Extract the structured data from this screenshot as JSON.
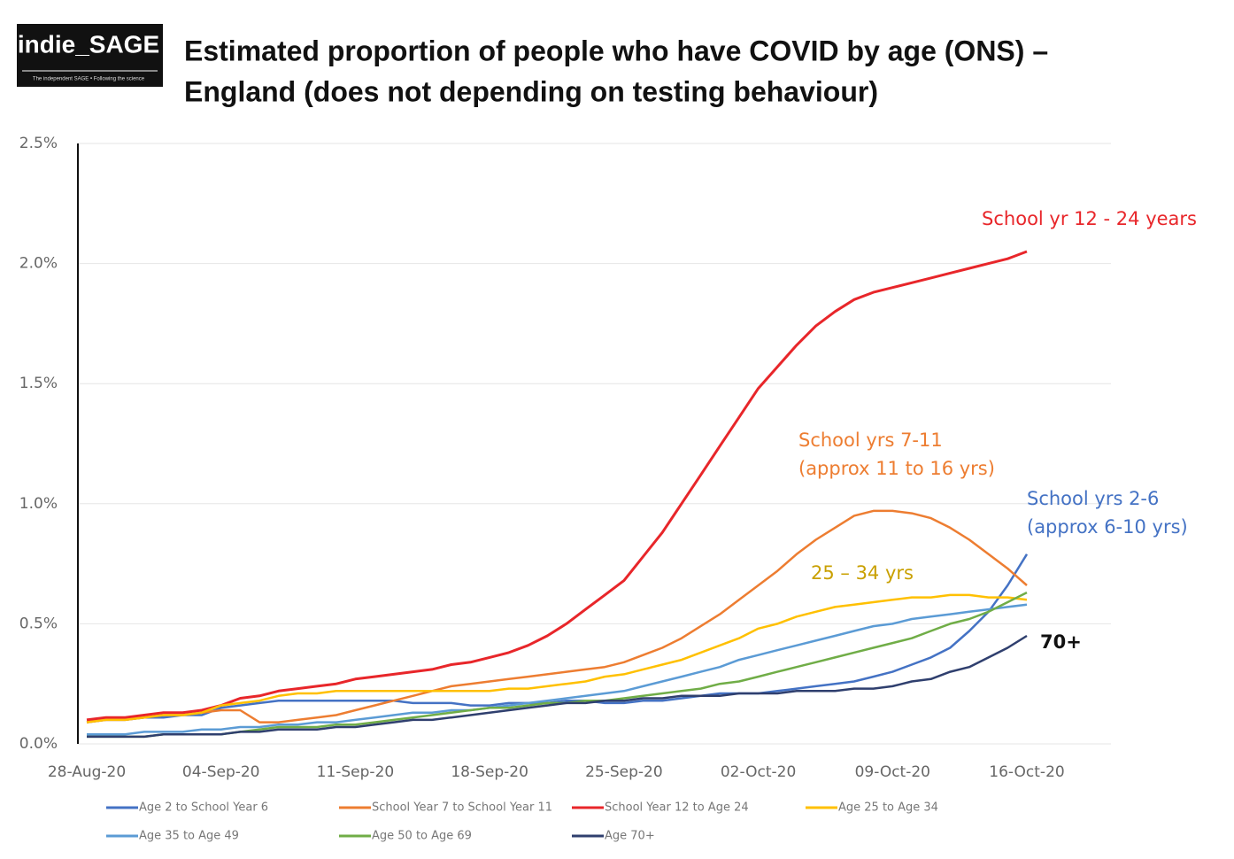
{
  "logo": {
    "name": "indie_SAGE",
    "tagline": "The independent SAGE • Following the science"
  },
  "chart_data": {
    "type": "line",
    "title": [
      "Estimated proportion of people who have COVID by age (ONS) –",
      "England (does not depending on testing behaviour)"
    ],
    "categories": [
      "28-Aug-20",
      null,
      null,
      null,
      null,
      null,
      null,
      "04-Sep-20",
      null,
      null,
      null,
      null,
      null,
      null,
      "11-Sep-20",
      null,
      null,
      null,
      null,
      null,
      null,
      "18-Sep-20",
      null,
      null,
      null,
      null,
      null,
      null,
      "25-Sep-20",
      null,
      null,
      null,
      null,
      null,
      null,
      "02-Oct-20",
      null,
      null,
      null,
      null,
      null,
      null,
      "09-Oct-20",
      null,
      null,
      null,
      null,
      null,
      null,
      "16-Oct-20"
    ],
    "ylim": [
      0,
      2.5
    ],
    "yticks": [
      {
        "value": 0,
        "label": "0.0%"
      },
      {
        "value": 0.5,
        "label": "0.5%"
      },
      {
        "value": 1,
        "label": "1.0%"
      },
      {
        "value": 1.5,
        "label": "1.5%"
      },
      {
        "value": 2,
        "label": "2.0%"
      },
      {
        "value": 2.5,
        "label": "2.5%"
      }
    ],
    "grid": true,
    "legend": "bottom",
    "series": [
      {
        "name": "Age 2 to School Year 6",
        "color": "#4472c4",
        "values": [
          0.09,
          0.1,
          0.1,
          0.11,
          0.11,
          0.12,
          0.12,
          0.15,
          0.16,
          0.17,
          0.18,
          0.18,
          0.18,
          0.18,
          0.18,
          0.18,
          0.18,
          0.17,
          0.17,
          0.17,
          0.16,
          0.16,
          0.17,
          0.17,
          0.17,
          0.18,
          0.18,
          0.17,
          0.17,
          0.18,
          0.18,
          0.19,
          0.2,
          0.21,
          0.21,
          0.21,
          0.22,
          0.23,
          0.24,
          0.25,
          0.26,
          0.28,
          0.3,
          0.33,
          0.36,
          0.4,
          0.47,
          0.55,
          0.66,
          0.79
        ]
      },
      {
        "name": "School Year 7 to School Year 11",
        "color": "#ed7d31",
        "values": [
          0.09,
          0.1,
          0.1,
          0.11,
          0.12,
          0.12,
          0.13,
          0.14,
          0.14,
          0.09,
          0.09,
          0.1,
          0.11,
          0.12,
          0.14,
          0.16,
          0.18,
          0.2,
          0.22,
          0.24,
          0.25,
          0.26,
          0.27,
          0.28,
          0.29,
          0.3,
          0.31,
          0.32,
          0.34,
          0.37,
          0.4,
          0.44,
          0.49,
          0.54,
          0.6,
          0.66,
          0.72,
          0.79,
          0.85,
          0.9,
          0.95,
          0.97,
          0.97,
          0.96,
          0.94,
          0.9,
          0.85,
          0.79,
          0.73,
          0.66
        ]
      },
      {
        "name": "School Year 12 to Age 24",
        "color": "#e8262a",
        "values": [
          0.1,
          0.11,
          0.11,
          0.12,
          0.13,
          0.13,
          0.14,
          0.16,
          0.19,
          0.2,
          0.22,
          0.23,
          0.24,
          0.25,
          0.27,
          0.28,
          0.29,
          0.3,
          0.31,
          0.33,
          0.34,
          0.36,
          0.38,
          0.41,
          0.45,
          0.5,
          0.56,
          0.62,
          0.68,
          0.78,
          0.88,
          1.0,
          1.12,
          1.24,
          1.36,
          1.48,
          1.57,
          1.66,
          1.74,
          1.8,
          1.85,
          1.88,
          1.9,
          1.92,
          1.94,
          1.96,
          1.98,
          2.0,
          2.02,
          2.05
        ]
      },
      {
        "name": "Age 25 to Age 34",
        "color": "#ffc000",
        "values": [
          0.09,
          0.1,
          0.1,
          0.11,
          0.12,
          0.12,
          0.13,
          0.16,
          0.17,
          0.18,
          0.2,
          0.21,
          0.21,
          0.22,
          0.22,
          0.22,
          0.22,
          0.22,
          0.22,
          0.22,
          0.22,
          0.22,
          0.23,
          0.23,
          0.24,
          0.25,
          0.26,
          0.28,
          0.29,
          0.31,
          0.33,
          0.35,
          0.38,
          0.41,
          0.44,
          0.48,
          0.5,
          0.53,
          0.55,
          0.57,
          0.58,
          0.59,
          0.6,
          0.61,
          0.61,
          0.62,
          0.62,
          0.61,
          0.61,
          0.6
        ]
      },
      {
        "name": "Age 35 to Age 49",
        "color": "#5b9bd5",
        "values": [
          0.04,
          0.04,
          0.04,
          0.05,
          0.05,
          0.05,
          0.06,
          0.06,
          0.07,
          0.07,
          0.08,
          0.08,
          0.09,
          0.09,
          0.1,
          0.11,
          0.12,
          0.13,
          0.13,
          0.14,
          0.14,
          0.15,
          0.16,
          0.17,
          0.18,
          0.19,
          0.2,
          0.21,
          0.22,
          0.24,
          0.26,
          0.28,
          0.3,
          0.32,
          0.35,
          0.37,
          0.39,
          0.41,
          0.43,
          0.45,
          0.47,
          0.49,
          0.5,
          0.52,
          0.53,
          0.54,
          0.55,
          0.56,
          0.57,
          0.58
        ]
      },
      {
        "name": "Age 50 to Age 69",
        "color": "#70ad47",
        "values": [
          0.03,
          0.03,
          0.03,
          0.03,
          0.04,
          0.04,
          0.04,
          0.04,
          0.05,
          0.06,
          0.07,
          0.07,
          0.07,
          0.08,
          0.08,
          0.09,
          0.1,
          0.11,
          0.12,
          0.13,
          0.14,
          0.15,
          0.15,
          0.16,
          0.17,
          0.17,
          0.18,
          0.18,
          0.19,
          0.2,
          0.21,
          0.22,
          0.23,
          0.25,
          0.26,
          0.28,
          0.3,
          0.32,
          0.34,
          0.36,
          0.38,
          0.4,
          0.42,
          0.44,
          0.47,
          0.5,
          0.52,
          0.55,
          0.59,
          0.63
        ]
      },
      {
        "name": "Age 70+",
        "color": "#2f3f6e",
        "values": [
          0.03,
          0.03,
          0.03,
          0.03,
          0.04,
          0.04,
          0.04,
          0.04,
          0.05,
          0.05,
          0.06,
          0.06,
          0.06,
          0.07,
          0.07,
          0.08,
          0.09,
          0.1,
          0.1,
          0.11,
          0.12,
          0.13,
          0.14,
          0.15,
          0.16,
          0.17,
          0.17,
          0.18,
          0.18,
          0.19,
          0.19,
          0.2,
          0.2,
          0.2,
          0.21,
          0.21,
          0.21,
          0.22,
          0.22,
          0.22,
          0.23,
          0.23,
          0.24,
          0.26,
          0.27,
          0.3,
          0.32,
          0.36,
          0.4,
          0.45
        ]
      }
    ],
    "annotations": [
      {
        "text": "School yr 12 - 24 years",
        "color": "#e8262a"
      },
      {
        "text": "School yrs 7-11",
        "color": "#ed7d31"
      },
      {
        "text": "(approx 11 to 16 yrs)",
        "color": "#ed7d31"
      },
      {
        "text": "25 – 34 yrs",
        "color": "#c9a000"
      },
      {
        "text": "School yrs 2-6",
        "color": "#4472c4"
      },
      {
        "text": "(approx 6-10 yrs)",
        "color": "#4472c4"
      },
      {
        "text": "70+",
        "color": "#111111"
      }
    ]
  }
}
